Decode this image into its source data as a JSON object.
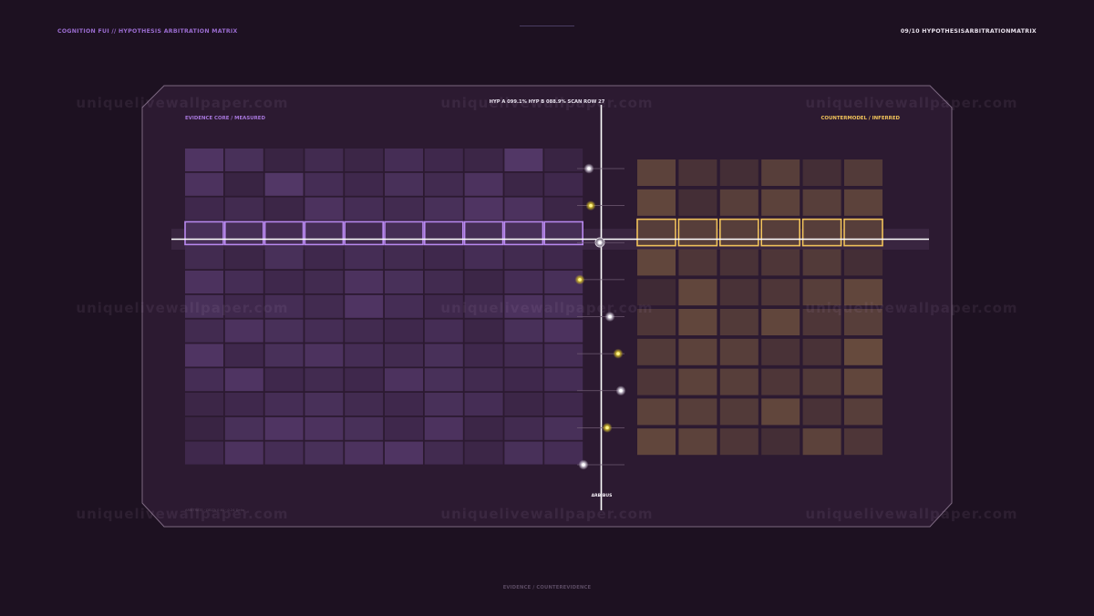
{
  "header": {
    "left_title": "COGNITION FUI // HYPOTHESIS ARBITRATION MATRIX",
    "right_title": "09/10 HYPOTHESISARBITRATIONMATRIX"
  },
  "panel": {
    "status_line": "HYP A 099.1%   HYP B 088.9%   SCAN ROW 27",
    "left_label": "EVIDENCE CORE / MEASURED",
    "right_label": "COUNTERMODEL / INFERRED",
    "axis_label": "ARBIBUS",
    "bottom_left_note": "ARBITRATE · DELTA 0.6δ · 0.24 Delta"
  },
  "footer": {
    "legend": "EVIDENCE / COUNTEREVIDENCE"
  },
  "watermark": {
    "text": "uniquelivewallpaper.com"
  },
  "colors": {
    "background": "#1d1121",
    "panel_fill": "#2c1a31",
    "left_accent": "#b989f0",
    "right_accent": "#f0c25a",
    "divider": "#ffffff"
  },
  "matrix_left": {
    "rows": 13,
    "cols": 10,
    "highlight_row": 3,
    "levels": [
      [
        0.55,
        0.45,
        0.2,
        0.35,
        0.25,
        0.4,
        0.3,
        0.25,
        0.6,
        0.2
      ],
      [
        0.5,
        0.2,
        0.6,
        0.4,
        0.3,
        0.45,
        0.35,
        0.5,
        0.25,
        0.3
      ],
      [
        0.3,
        0.35,
        0.25,
        0.5,
        0.4,
        0.35,
        0.45,
        0.55,
        0.5,
        0.25
      ],
      [
        0.6,
        0.55,
        0.5,
        0.55,
        0.45,
        0.55,
        0.5,
        0.55,
        0.6,
        0.55
      ],
      [
        0.35,
        0.25,
        0.45,
        0.3,
        0.4,
        0.35,
        0.3,
        0.4,
        0.35,
        0.3
      ],
      [
        0.5,
        0.4,
        0.3,
        0.35,
        0.5,
        0.45,
        0.35,
        0.25,
        0.4,
        0.45
      ],
      [
        0.45,
        0.3,
        0.4,
        0.35,
        0.55,
        0.4,
        0.3,
        0.35,
        0.5,
        0.45
      ],
      [
        0.35,
        0.5,
        0.45,
        0.4,
        0.35,
        0.3,
        0.4,
        0.25,
        0.45,
        0.5
      ],
      [
        0.55,
        0.3,
        0.45,
        0.5,
        0.4,
        0.35,
        0.45,
        0.3,
        0.35,
        0.4
      ],
      [
        0.4,
        0.55,
        0.3,
        0.35,
        0.3,
        0.5,
        0.45,
        0.35,
        0.3,
        0.4
      ],
      [
        0.25,
        0.3,
        0.4,
        0.45,
        0.35,
        0.3,
        0.45,
        0.4,
        0.25,
        0.3
      ],
      [
        0.2,
        0.45,
        0.55,
        0.5,
        0.45,
        0.3,
        0.5,
        0.25,
        0.35,
        0.45
      ],
      [
        0.3,
        0.5,
        0.4,
        0.45,
        0.5,
        0.55,
        0.35,
        0.25,
        0.45,
        0.4
      ]
    ]
  },
  "matrix_right": {
    "rows": 10,
    "cols": 6,
    "highlight_row": 2,
    "levels": [
      [
        0.5,
        0.3,
        0.25,
        0.45,
        0.25,
        0.4
      ],
      [
        0.55,
        0.25,
        0.45,
        0.5,
        0.45,
        0.5
      ],
      [
        0.6,
        0.6,
        0.6,
        0.6,
        0.6,
        0.6
      ],
      [
        0.55,
        0.35,
        0.3,
        0.35,
        0.4,
        0.25
      ],
      [
        0.2,
        0.55,
        0.3,
        0.35,
        0.45,
        0.55
      ],
      [
        0.35,
        0.55,
        0.4,
        0.55,
        0.35,
        0.45
      ],
      [
        0.4,
        0.5,
        0.45,
        0.3,
        0.3,
        0.6
      ],
      [
        0.35,
        0.5,
        0.45,
        0.35,
        0.4,
        0.55
      ],
      [
        0.5,
        0.45,
        0.4,
        0.55,
        0.3,
        0.45
      ],
      [
        0.55,
        0.5,
        0.35,
        0.25,
        0.5,
        0.35
      ]
    ]
  },
  "markers": [
    {
      "level": 0.9,
      "tone": "white"
    },
    {
      "level": 0.8,
      "tone": "yellow"
    },
    {
      "level": 0.7,
      "tone": "white"
    },
    {
      "level": 0.6,
      "tone": "yellow"
    },
    {
      "level": 0.5,
      "tone": "white"
    },
    {
      "level": 0.4,
      "tone": "yellow"
    },
    {
      "level": 0.3,
      "tone": "white"
    },
    {
      "level": 0.2,
      "tone": "yellow"
    },
    {
      "level": 0.1,
      "tone": "white"
    }
  ]
}
